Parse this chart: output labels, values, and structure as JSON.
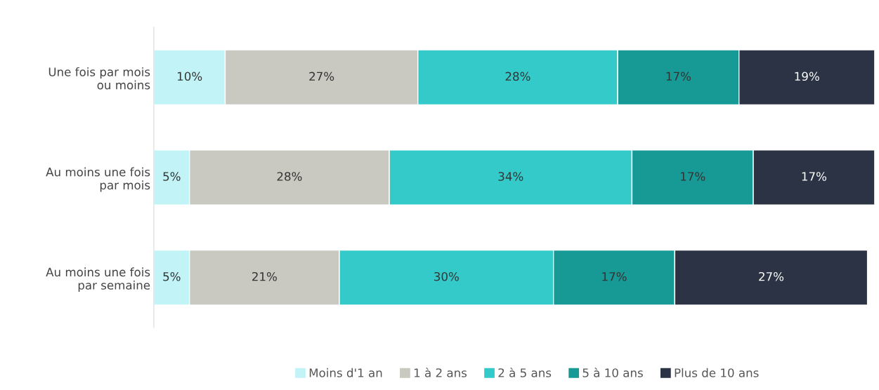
{
  "chart_data": {
    "type": "bar",
    "orientation": "horizontal",
    "stacked": true,
    "legend": "bottom",
    "grid": false,
    "categories": [
      "Une fois par mois\nou moins",
      "Au moins une fois\npar mois",
      "Au moins une fois\npar semaine"
    ],
    "series": [
      {
        "name": "Moins d'1 an",
        "color": "#c2f4f7",
        "values": [
          10,
          5,
          5
        ],
        "value_labels": [
          "10%",
          "5%",
          "5%"
        ]
      },
      {
        "name": "1 à 2 ans",
        "color": "#c9c9c2",
        "values": [
          27,
          28,
          21
        ],
        "value_labels": [
          "27%",
          "28%",
          "21%"
        ]
      },
      {
        "name": "2 à 5 ans",
        "color": "#35caca",
        "values": [
          28,
          34,
          30
        ],
        "value_labels": [
          "28%",
          "34%",
          "30%"
        ]
      },
      {
        "name": "5 à 10 ans",
        "color": "#179a96",
        "values": [
          17,
          17,
          17
        ],
        "value_labels": [
          "17%",
          "17%",
          "17%"
        ]
      },
      {
        "name": "Plus de 10 ans",
        "color": "#2b3344",
        "values": [
          19,
          17,
          27
        ],
        "value_labels": [
          "19%",
          "17%",
          "27%"
        ]
      }
    ]
  }
}
